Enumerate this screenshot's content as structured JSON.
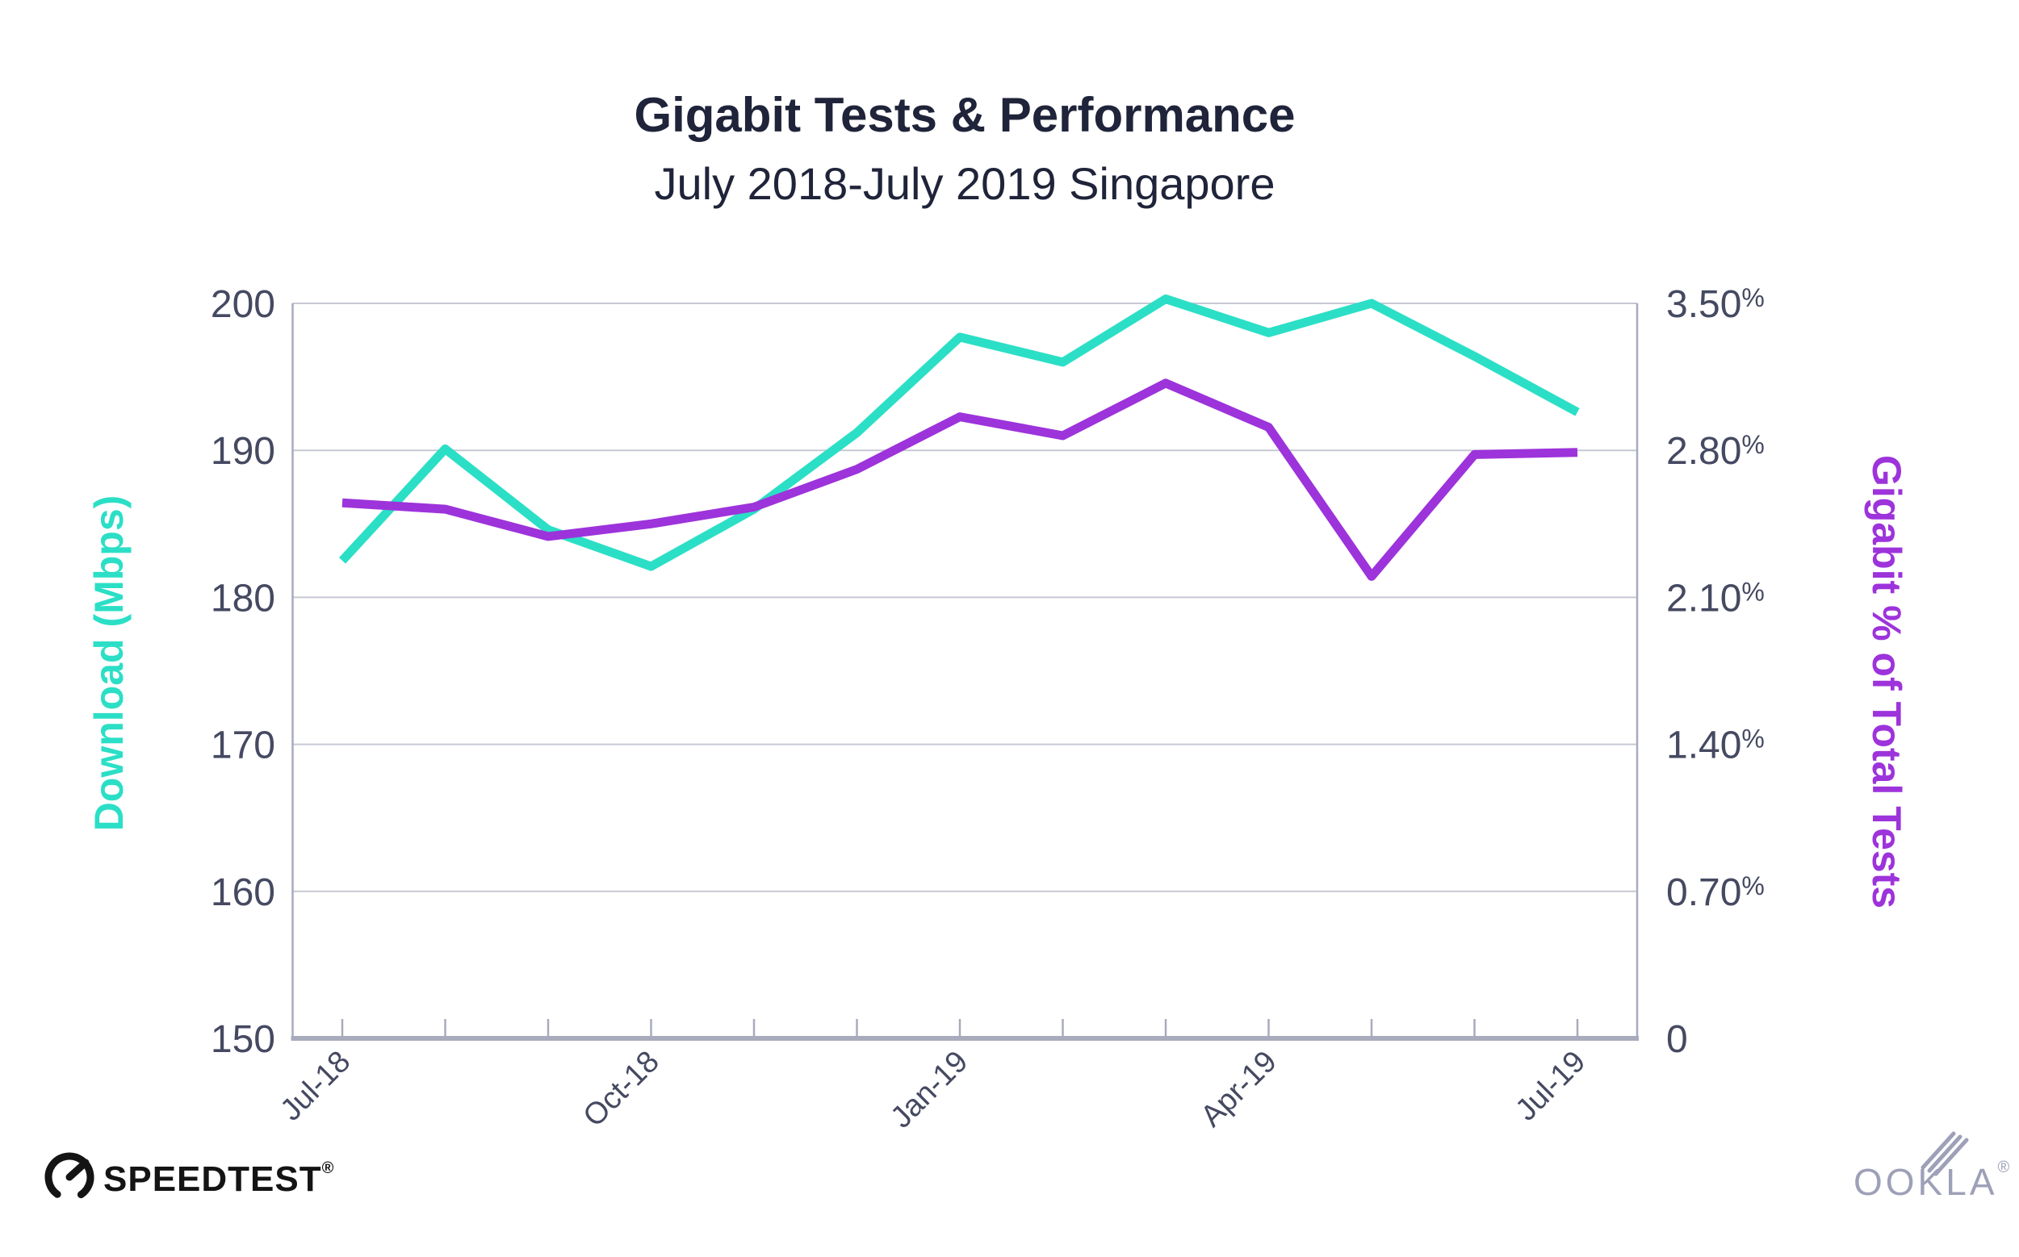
{
  "header": {
    "title": "Gigabit Tests & Performance",
    "subtitle": "July 2018-July 2019 Singapore"
  },
  "left_axis": {
    "label": "Download (Mbps)",
    "tick_labels": [
      "200",
      "190",
      "180",
      "170",
      "160",
      "150"
    ],
    "tick_values": [
      200,
      190,
      180,
      170,
      160,
      150
    ]
  },
  "right_axis": {
    "label": "Gigabit % of Total Tests",
    "tick_labels": [
      "3.50%",
      "2.80%",
      "2.10%",
      "1.40%",
      "0.70%",
      "0"
    ],
    "tick_values": [
      3.5,
      2.8,
      2.1,
      1.4,
      0.7,
      0
    ]
  },
  "x_axis": {
    "label_indices": [
      0,
      3,
      6,
      9,
      12
    ],
    "shown_labels": [
      "Jul-18",
      "Oct-18",
      "Jan-19",
      "Apr-19",
      "Jul-19"
    ]
  },
  "chart_data": {
    "type": "line",
    "x": [
      "Jul-18",
      "Aug-18",
      "Sep-18",
      "Oct-18",
      "Nov-18",
      "Dec-18",
      "Jan-19",
      "Feb-19",
      "Mar-19",
      "Apr-19",
      "May-19",
      "Jun-19",
      "Jul-19"
    ],
    "series": [
      {
        "id": "download-line",
        "name": "Download (Mbps)",
        "axis": "left",
        "color": "#2BDFC6",
        "values": [
          182.5,
          190.1,
          184.6,
          182.1,
          186.0,
          191.2,
          197.7,
          196.0,
          200.3,
          198.0,
          200.0,
          196.4,
          192.6
        ]
      },
      {
        "id": "gigabit-pct-line",
        "name": "Gigabit % of Total Tests",
        "axis": "right",
        "color": "#9D33DB",
        "values": [
          2.55,
          2.52,
          2.39,
          2.45,
          2.53,
          2.71,
          2.96,
          2.87,
          3.12,
          2.91,
          2.2,
          2.78,
          2.79
        ]
      }
    ],
    "left_ylim": [
      150,
      200
    ],
    "right_ylim": [
      0,
      3.5
    ],
    "grid": true,
    "title": "Gigabit Tests & Performance",
    "subtitle": "July 2018-July 2019 Singapore",
    "legend_position": "none"
  },
  "branding": {
    "speedtest_label": "SPEEDTEST",
    "speedtest_reg": "®",
    "ookla_label": "OOKLA",
    "ookla_reg": "®"
  },
  "colors": {
    "teal": "#2BDFC6",
    "purple": "#9D33DB",
    "title_text": "#20243A",
    "tick_text": "#454961",
    "gridline": "#C6C9D4",
    "axis_line": "#A8ABBC",
    "speedtest_logo": "#141414",
    "ookla_logo": "#9EA0B8",
    "background": "#FFFFFF"
  }
}
